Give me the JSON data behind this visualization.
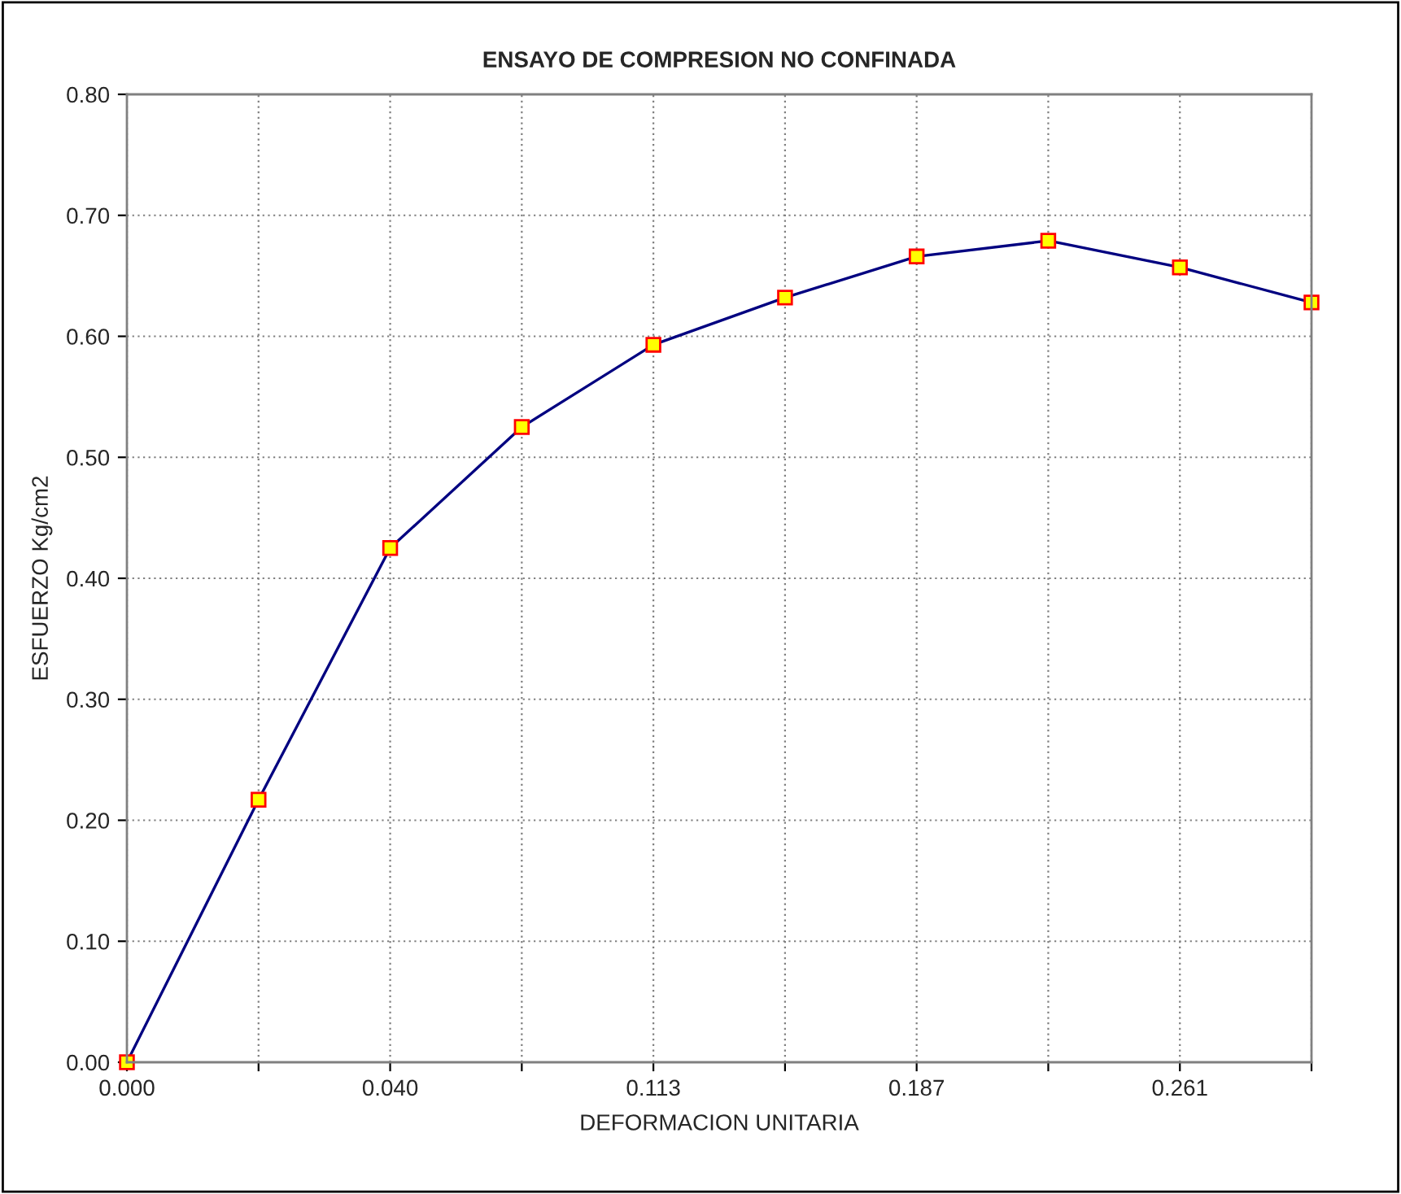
{
  "chart_data": {
    "type": "line",
    "title": "ENSAYO DE COMPRESION NO CONFINADA",
    "xlabel": "DEFORMACION UNITARIA",
    "ylabel": "ESFUERZO Kg/cm2",
    "categories": [
      "0.000",
      null,
      "0.040",
      null,
      "0.113",
      null,
      "0.187",
      null,
      "0.261",
      null
    ],
    "series": [
      {
        "color": "#000080",
        "values": [
          0.0,
          0.217,
          0.425,
          0.525,
          0.593,
          0.632,
          0.666,
          0.679,
          0.657,
          0.628
        ]
      }
    ],
    "ylim": [
      0,
      0.8
    ],
    "yticks": [
      {
        "value": 0,
        "label": "0.00"
      },
      {
        "value": 0.1,
        "label": "0.10"
      },
      {
        "value": 0.2,
        "label": "0.20"
      },
      {
        "value": 0.3,
        "label": "0.30"
      },
      {
        "value": 0.4,
        "label": "0.40"
      },
      {
        "value": 0.5,
        "label": "0.50"
      },
      {
        "value": 0.6,
        "label": "0.60"
      },
      {
        "value": 0.7,
        "label": "0.70"
      },
      {
        "value": 0.8,
        "label": "0.80"
      }
    ],
    "grid": true,
    "marker": "square",
    "line_style": "solid"
  }
}
